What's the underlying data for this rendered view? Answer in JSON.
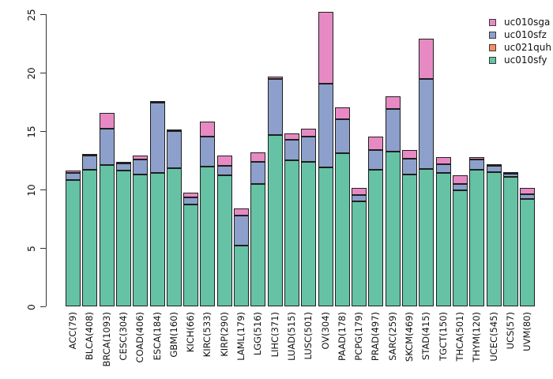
{
  "chart_data": {
    "type": "bar",
    "stacked": true,
    "title": "",
    "xlabel": "",
    "ylabel": "",
    "ylim": [
      0,
      25
    ],
    "yticks": [
      0,
      5,
      10,
      15,
      20,
      25
    ],
    "grid": false,
    "legend_position": "top-right",
    "categories": [
      "ACC(79)",
      "BLCA(408)",
      "BRCA(1093)",
      "CESC(304)",
      "COAD(406)",
      "ESCA(184)",
      "GBM(160)",
      "KICH(66)",
      "KIRC(533)",
      "KIRP(290)",
      "LAML(179)",
      "LGG(516)",
      "LIHC(371)",
      "LUAD(515)",
      "LUSC(501)",
      "OV(304)",
      "PAAD(178)",
      "PCPG(179)",
      "PRAD(497)",
      "SARC(259)",
      "SKCM(469)",
      "STAD(415)",
      "TGCT(150)",
      "THCA(501)",
      "THYM(120)",
      "UCEC(545)",
      "UCS(57)",
      "UVM(80)"
    ],
    "series": [
      {
        "name": "uc010sfy",
        "color": "#66C2A5",
        "values": [
          10.8,
          11.75,
          12.1,
          11.7,
          11.3,
          11.5,
          11.9,
          8.7,
          12.0,
          11.2,
          5.2,
          10.45,
          14.65,
          12.5,
          12.4,
          11.9,
          13.1,
          9.0,
          11.7,
          13.25,
          11.3,
          11.75,
          11.45,
          9.95,
          11.7,
          11.6,
          11.2,
          9.2
        ]
      },
      {
        "name": "uc021quh",
        "color": "#FC8D62",
        "values": [
          0,
          0,
          0,
          0,
          0,
          0,
          0,
          0,
          0,
          0,
          0,
          0,
          0,
          0,
          0,
          0,
          0,
          0,
          0,
          0,
          0,
          0,
          0,
          0,
          0,
          0,
          0,
          0
        ]
      },
      {
        "name": "uc010sfz",
        "color": "#8DA0CB",
        "values": [
          0.6,
          1.2,
          3.1,
          0.6,
          1.3,
          6.0,
          3.2,
          0.6,
          2.55,
          0.85,
          2.6,
          1.95,
          4.85,
          1.75,
          2.15,
          7.2,
          2.9,
          0.55,
          1.7,
          3.65,
          1.35,
          7.7,
          0.7,
          0.55,
          0.9,
          0.5,
          0.25,
          0.4
        ]
      },
      {
        "name": "uc010sga",
        "color": "#E78AC3",
        "values": [
          0.2,
          0.1,
          1.4,
          0.05,
          0.3,
          0.05,
          0.05,
          0.45,
          1.3,
          0.85,
          0.6,
          0.8,
          0.2,
          0.55,
          0.65,
          6.1,
          1.05,
          0.6,
          1.15,
          1.1,
          0.75,
          3.5,
          0.6,
          0.75,
          0.2,
          0.05,
          0.05,
          0.55
        ]
      }
    ],
    "legend": [
      {
        "label": "uc010sga",
        "color": "#E78AC3"
      },
      {
        "label": "uc010sfz",
        "color": "#8DA0CB"
      },
      {
        "label": "uc021quh",
        "color": "#FC8D62"
      },
      {
        "label": "uc010sfy",
        "color": "#66C2A5"
      }
    ]
  }
}
